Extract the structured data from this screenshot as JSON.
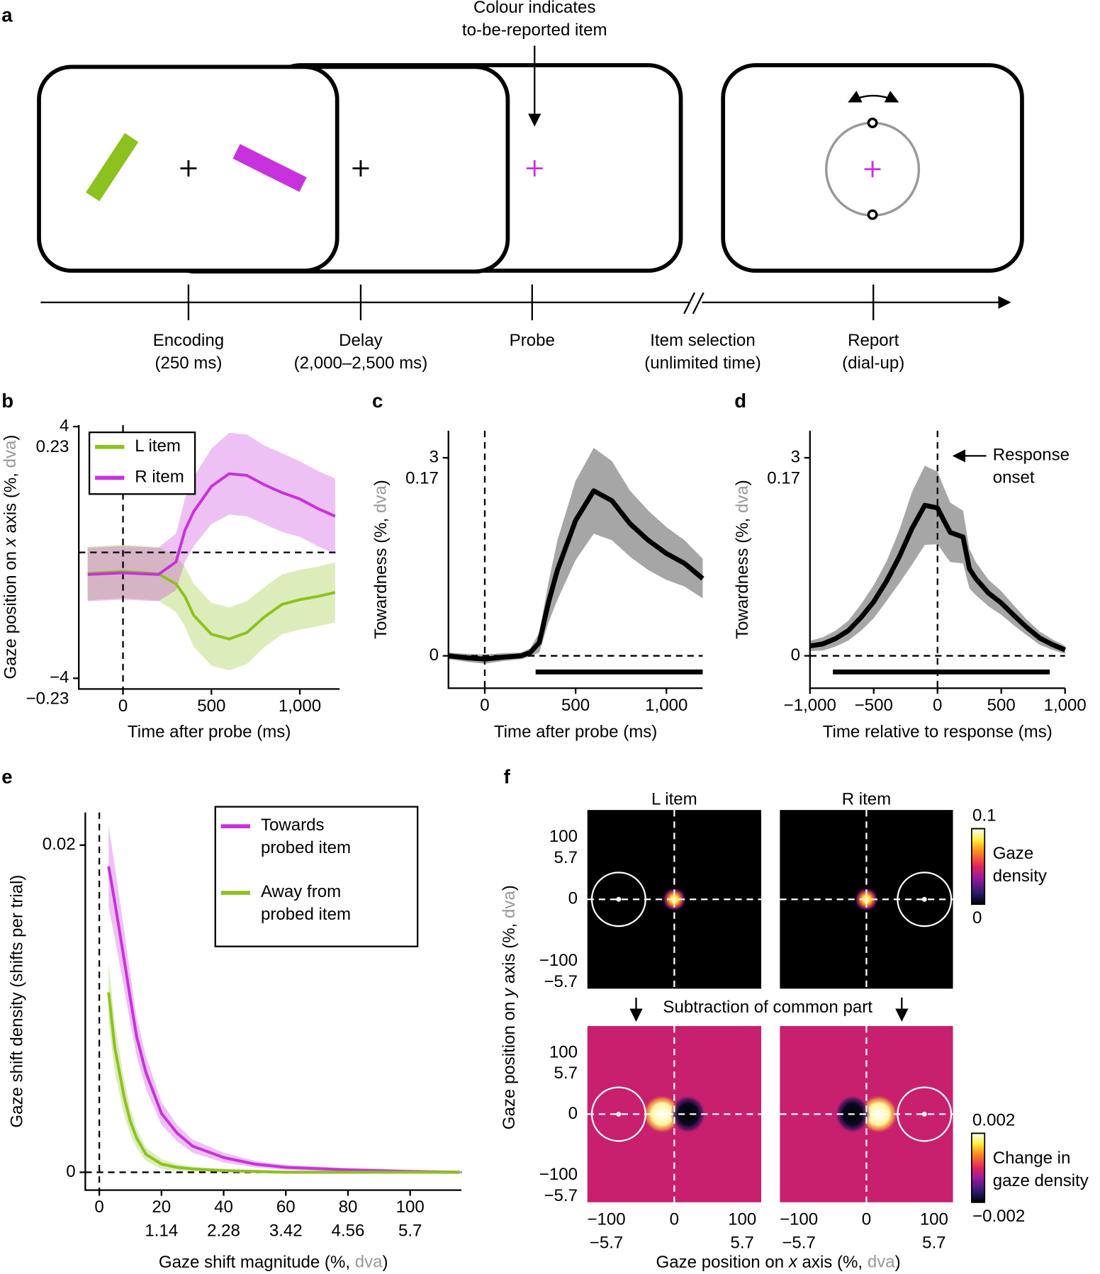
{
  "panel_labels": [
    "a",
    "b",
    "c",
    "d",
    "e",
    "f"
  ],
  "diagram": {
    "annotation": "Colour indicates\nto-be-reported item",
    "stages": [
      {
        "name": "Encoding",
        "detail": "(250 ms)"
      },
      {
        "name": "Delay",
        "detail": "(2,000–2,500 ms)"
      },
      {
        "name": "Probe"
      },
      {
        "name": "Item selection",
        "detail": "(unlimited time)"
      },
      {
        "name": "Report",
        "detail": "(dial-up)"
      }
    ]
  },
  "panel_f": {
    "xlabel": "Gaze position on x axis (%, dva)",
    "ylabel": "Gaze position on y axis (%, dva)",
    "annotation": "Subtraction of common part"
  },
  "chart_data": [
    {
      "type": "line",
      "xlabel": "Time after probe (ms)",
      "ylabel": "Gaze position on x axis (%, dva)",
      "x": [
        -200,
        0,
        200,
        300,
        350,
        400,
        500,
        600,
        700,
        800,
        900,
        1000,
        1100,
        1200
      ],
      "series": [
        {
          "name": "L item",
          "color": "#8cc21f",
          "values": [
            -0.67,
            -0.6,
            -0.68,
            -1.0,
            -1.4,
            -2.0,
            -2.6,
            -2.75,
            -2.55,
            -2.05,
            -1.65,
            -1.5,
            -1.4,
            -1.27
          ],
          "errors": [
            0.85,
            0.85,
            0.85,
            0.9,
            0.95,
            1.0,
            1.0,
            1.0,
            1.0,
            0.95,
            0.95,
            0.95,
            0.95,
            0.95
          ]
        },
        {
          "name": "R item",
          "color": "#c832dc",
          "values": [
            -0.7,
            -0.65,
            -0.7,
            -0.3,
            0.7,
            1.3,
            2.1,
            2.5,
            2.45,
            2.15,
            1.9,
            1.7,
            1.4,
            1.15
          ],
          "errors": [
            0.85,
            0.85,
            0.85,
            0.9,
            1.0,
            1.1,
            1.2,
            1.3,
            1.3,
            1.25,
            1.25,
            1.2,
            1.2,
            1.2
          ]
        }
      ],
      "xlim": [
        -250,
        1225
      ],
      "xticks": [
        0,
        500,
        {
          "value": 1000,
          "label": "1,000"
        }
      ],
      "ylim": [
        -4.34,
        4.05
      ],
      "yticks": [
        4,
        {
          "value": -4,
          "label": "−4"
        }
      ],
      "y2lim": [
        -0.2496,
        0.2329
      ],
      "y2ticks": [
        0.23,
        {
          "value": -0.23,
          "label": "−0.23"
        }
      ],
      "vline": 0,
      "hline": 0,
      "legend": "upper left"
    },
    {
      "type": "line",
      "xlabel": "Time after probe (ms)",
      "ylabel": "Towardness (%, dva)",
      "x": [
        -200,
        -100,
        0,
        100,
        200,
        250,
        300,
        350,
        400,
        500,
        600,
        700,
        800,
        900,
        1000,
        1100,
        1200
      ],
      "series": [
        {
          "color": "#000000",
          "band_color": "#a6a6a6",
          "values": [
            0,
            -0.03,
            -0.05,
            -0.02,
            0,
            0.05,
            0.2,
            0.8,
            1.3,
            2.05,
            2.5,
            2.35,
            2.0,
            1.75,
            1.55,
            1.4,
            1.17
          ],
          "errors": [
            0.05,
            0.06,
            0.07,
            0.06,
            0.05,
            0.06,
            0.15,
            0.3,
            0.45,
            0.6,
            0.65,
            0.6,
            0.5,
            0.45,
            0.4,
            0.35,
            0.3
          ]
        }
      ],
      "significance": [
        280,
        1200
      ],
      "xlim": [
        -200,
        1200
      ],
      "xticks": [
        0,
        500,
        {
          "value": 1000,
          "label": "1,000"
        }
      ],
      "ylim": [
        -0.49,
        3.41
      ],
      "yticks": [
        0,
        3
      ],
      "y2lim": [
        -0.0278,
        0.1933
      ],
      "y2ticks": [
        0.17
      ],
      "vline": 0,
      "hline": 0
    },
    {
      "type": "line",
      "xlabel": "Time relative to response (ms)",
      "ylabel": "Towardness (%, dva)",
      "annotation": "Response\nonset",
      "x": [
        -1000,
        -900,
        -800,
        -700,
        -600,
        -500,
        -400,
        -300,
        -200,
        -100,
        0,
        50,
        100,
        200,
        250,
        300,
        400,
        500,
        600,
        700,
        800,
        900,
        1000
      ],
      "series": [
        {
          "color": "#000000",
          "band_color": "#a6a6a6",
          "values": [
            0.15,
            0.18,
            0.26,
            0.38,
            0.58,
            0.82,
            1.13,
            1.5,
            1.93,
            2.28,
            2.24,
            2.05,
            1.87,
            1.8,
            1.32,
            1.17,
            0.95,
            0.8,
            0.61,
            0.43,
            0.27,
            0.17,
            0.09
          ],
          "errors": [
            0.08,
            0.1,
            0.12,
            0.15,
            0.2,
            0.25,
            0.3,
            0.4,
            0.55,
            0.6,
            0.55,
            0.5,
            0.45,
            0.4,
            0.3,
            0.25,
            0.2,
            0.18,
            0.15,
            0.12,
            0.1,
            0.08,
            0.06
          ]
        }
      ],
      "significance": [
        -820,
        880
      ],
      "xlim": [
        -1000,
        1000
      ],
      "xticks": [
        {
          "value": -1000,
          "label": "−1,000"
        },
        {
          "value": -500,
          "label": "−500"
        },
        0,
        500,
        {
          "value": 1000,
          "label": "1,000"
        }
      ],
      "ylim": [
        -0.49,
        3.41
      ],
      "yticks": [
        0,
        3
      ],
      "y2lim": [
        -0.0278,
        0.1933
      ],
      "y2ticks": [
        0.17
      ],
      "vline": 0,
      "hline": 0
    },
    {
      "type": "line",
      "xlabel": "Gaze shift magnitude (%, dva)",
      "ylabel": "Gaze shift density (shifts per trial)",
      "x": [
        3,
        5,
        8,
        10,
        12,
        15,
        20,
        25,
        30,
        40,
        50,
        60,
        80,
        100,
        116
      ],
      "series": [
        {
          "name": "Towards\nprobed item",
          "color": "#c832dc",
          "values": [
            0.0187,
            0.0165,
            0.013,
            0.0106,
            0.0083,
            0.0061,
            0.0036,
            0.0024,
            0.0016,
            0.0009,
            0.0005,
            0.0003,
            0.00015,
            5e-05,
            0
          ],
          "errors": [
            0.0025,
            0.0022,
            0.0018,
            0.0015,
            0.0012,
            0.001,
            0.0007,
            0.0005,
            0.0004,
            0.0003,
            0.0002,
            0.00015,
            0.0001,
            0.0001,
            0.0001
          ]
        },
        {
          "name": "Away from\nprobed item",
          "color": "#8cc21f",
          "values": [
            0.011,
            0.0076,
            0.0046,
            0.0031,
            0.0021,
            0.0011,
            0.0005,
            0.0003,
            0.0002,
            0.0001,
            5e-05,
            0,
            0,
            0,
            0
          ],
          "errors": [
            0.0018,
            0.0015,
            0.0011,
            0.0008,
            0.0006,
            0.0004,
            0.0003,
            0.0002,
            0.00015,
            0.0001,
            0.0001,
            0.0001,
            0.0001,
            0.0001,
            0.0001
          ]
        }
      ],
      "xlim": [
        -4.5,
        116.5
      ],
      "xticks": [
        0,
        20,
        40,
        60,
        80,
        100
      ],
      "x2lim": [
        -0.2565,
        6.6405
      ],
      "x2ticks": [
        1.14,
        2.28,
        3.42,
        4.56,
        5.7
      ],
      "ylim": [
        -0.00109,
        0.022
      ],
      "yticks": [
        0,
        0.02
      ],
      "vline": 0,
      "hline": 0,
      "legend": "upper right"
    },
    {
      "type": "heatmap",
      "title": "L item",
      "colormap": "density",
      "xlim": [
        -128,
        128
      ],
      "ylim": [
        -144,
        144
      ],
      "yticks": [
        100,
        0,
        {
          "value": -100,
          "label": "−100"
        }
      ],
      "y2lim": [
        -8.208,
        8.208
      ],
      "y2ticks": [
        5.7,
        {
          "value": -5.7,
          "label": "−5.7"
        }
      ],
      "vline": 0,
      "hline": 0
    },
    {
      "type": "heatmap",
      "title": "R item",
      "colormap": "density",
      "xlim": [
        -128,
        128
      ],
      "ylim": [
        -144,
        144
      ],
      "vline": 0,
      "hline": 0,
      "colorbar": {
        "max": 0.1,
        "min": 0,
        "label": "Gaze\ndensity"
      }
    },
    {
      "type": "heatmap",
      "colormap": "change",
      "xlim": [
        -128,
        128
      ],
      "ylim": [
        -144,
        144
      ],
      "xticks": [
        {
          "value": -100,
          "label": "−100"
        },
        0,
        100
      ],
      "x2lim": [
        -7.296,
        7.296
      ],
      "x2ticks": [
        {
          "value": -5.7,
          "label": "−5.7"
        },
        5.7
      ],
      "yticks": [
        100,
        0,
        {
          "value": -100,
          "label": "−100"
        }
      ],
      "y2lim": [
        -8.208,
        8.208
      ],
      "y2ticks": [
        5.7,
        {
          "value": -5.7,
          "label": "−5.7"
        }
      ],
      "vline": 0,
      "hline": 0
    },
    {
      "type": "heatmap",
      "colormap": "change",
      "xlim": [
        -128,
        128
      ],
      "ylim": [
        -144,
        144
      ],
      "xticks": [
        {
          "value": -100,
          "label": "−100"
        },
        0,
        100
      ],
      "x2lim": [
        -7.296,
        7.296
      ],
      "x2ticks": [
        {
          "value": -5.7,
          "label": "−5.7"
        },
        5.7
      ],
      "vline": 0,
      "hline": 0,
      "colorbar": {
        "max": 0.002,
        "min": {
          "value": -0.002,
          "label": "−0.002"
        },
        "label": "Change in\ngaze density"
      }
    }
  ]
}
